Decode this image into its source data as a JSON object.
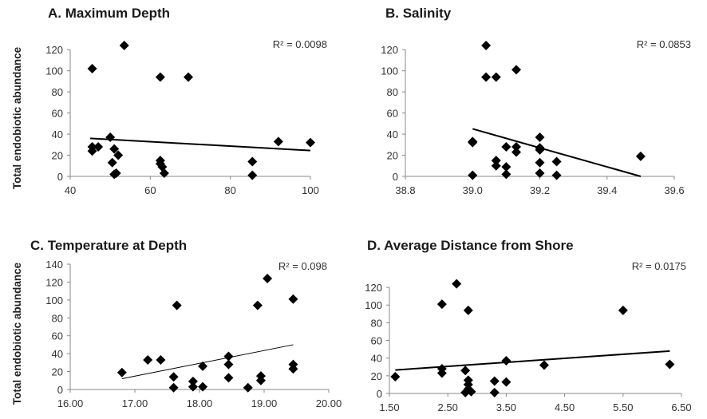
{
  "y_axis_label": "Total endobiotic abundance",
  "chart_data": [
    {
      "type": "scatter",
      "title": "A. Maximum Depth",
      "r2_label": "R² = 0.0098",
      "xlim": [
        40,
        100
      ],
      "ylim": [
        0,
        130
      ],
      "xticks": [
        40,
        60,
        80,
        100
      ],
      "xtick_labels": [
        "40",
        "60",
        "80",
        "100"
      ],
      "yticks": [
        0,
        20,
        40,
        60,
        80,
        100,
        120
      ],
      "ytick_labels": [
        "0",
        "20",
        "40",
        "60",
        "80",
        "100",
        "120"
      ],
      "points": [
        [
          45.5,
          102
        ],
        [
          53.5,
          124
        ],
        [
          62.5,
          94
        ],
        [
          69.5,
          94
        ],
        [
          45.5,
          24
        ],
        [
          45.5,
          28
        ],
        [
          47,
          28
        ],
        [
          50,
          37
        ],
        [
          51,
          26
        ],
        [
          52,
          20
        ],
        [
          50.5,
          13
        ],
        [
          51,
          2
        ],
        [
          51.5,
          3
        ],
        [
          62.5,
          15
        ],
        [
          63,
          9
        ],
        [
          63.5,
          3
        ],
        [
          62.5,
          12
        ],
        [
          85.5,
          14
        ],
        [
          85.5,
          1
        ],
        [
          92,
          33
        ],
        [
          100,
          32
        ]
      ],
      "trendline": [
        [
          45,
          36
        ],
        [
          100,
          24.5
        ]
      ]
    },
    {
      "type": "scatter",
      "title": "B. Salinity",
      "r2_label": "R² = 0.0853",
      "xlim": [
        38.8,
        39.6
      ],
      "ylim": [
        0,
        130
      ],
      "xticks": [
        38.8,
        39.0,
        39.2,
        39.4,
        39.6
      ],
      "xtick_labels": [
        "38.8",
        "39.0",
        "39.2",
        "39.4",
        "39.6"
      ],
      "yticks": [
        0,
        20,
        40,
        60,
        80,
        100,
        120
      ],
      "ytick_labels": [
        "0",
        "20",
        "40",
        "60",
        "80",
        "100",
        "120"
      ],
      "points": [
        [
          39.0,
          1
        ],
        [
          39.0,
          32
        ],
        [
          39.0,
          33
        ],
        [
          39.04,
          124
        ],
        [
          39.04,
          94
        ],
        [
          39.07,
          94
        ],
        [
          39.13,
          101
        ],
        [
          39.07,
          15
        ],
        [
          39.07,
          10
        ],
        [
          39.1,
          28
        ],
        [
          39.1,
          9
        ],
        [
          39.1,
          2
        ],
        [
          39.13,
          28
        ],
        [
          39.13,
          23
        ],
        [
          39.2,
          37
        ],
        [
          39.2,
          27
        ],
        [
          39.2,
          25
        ],
        [
          39.2,
          13
        ],
        [
          39.2,
          3
        ],
        [
          39.25,
          14
        ],
        [
          39.25,
          1
        ],
        [
          39.5,
          19
        ]
      ],
      "trendline": [
        [
          39.0,
          45
        ],
        [
          39.5,
          0
        ]
      ]
    },
    {
      "type": "scatter",
      "title": "C. Temperature at Depth",
      "r2_label": "R² = 0.098",
      "xlim": [
        16.0,
        20.0
      ],
      "ylim": [
        0,
        140
      ],
      "xticks": [
        16.0,
        17.0,
        18.0,
        19.0,
        20.0
      ],
      "xtick_labels": [
        "16.00",
        "17.00",
        "18.00",
        "19.00",
        "20.00"
      ],
      "yticks": [
        0,
        20,
        40,
        60,
        80,
        100,
        120,
        140
      ],
      "ytick_labels": [
        "0",
        "20",
        "40",
        "60",
        "80",
        "100",
        "120",
        "140"
      ],
      "points": [
        [
          16.8,
          19
        ],
        [
          17.2,
          33
        ],
        [
          17.4,
          33
        ],
        [
          17.65,
          94
        ],
        [
          17.6,
          14
        ],
        [
          17.6,
          2
        ],
        [
          17.9,
          9
        ],
        [
          17.9,
          3
        ],
        [
          18.05,
          3
        ],
        [
          18.05,
          26
        ],
        [
          18.45,
          37
        ],
        [
          18.45,
          28
        ],
        [
          18.45,
          13
        ],
        [
          18.75,
          2
        ],
        [
          18.9,
          94
        ],
        [
          18.95,
          15
        ],
        [
          18.95,
          10
        ],
        [
          19.05,
          124
        ],
        [
          19.45,
          101
        ],
        [
          19.45,
          28
        ],
        [
          19.45,
          23
        ]
      ],
      "trendline": [
        [
          16.8,
          12
        ],
        [
          19.45,
          50
        ]
      ]
    },
    {
      "type": "scatter",
      "title": "D. Average Distance from Shore",
      "r2_label": "R² = 0.0175",
      "xlim": [
        1.5,
        6.5
      ],
      "ylim": [
        0,
        130
      ],
      "xticks": [
        1.5,
        2.5,
        3.5,
        4.5,
        5.5,
        6.5
      ],
      "xtick_labels": [
        "1.50",
        "2.50",
        "3.50",
        "4.50",
        "5.50",
        "6.50"
      ],
      "yticks": [
        0,
        20,
        40,
        60,
        80,
        100,
        120
      ],
      "ytick_labels": [
        "0",
        "20",
        "40",
        "60",
        "80",
        "100",
        "120"
      ],
      "points": [
        [
          1.6,
          19
        ],
        [
          2.4,
          101
        ],
        [
          2.4,
          28
        ],
        [
          2.4,
          23
        ],
        [
          2.65,
          124
        ],
        [
          2.8,
          26
        ],
        [
          2.85,
          94
        ],
        [
          2.85,
          15
        ],
        [
          2.85,
          10
        ],
        [
          2.85,
          5
        ],
        [
          2.8,
          1
        ],
        [
          2.9,
          2
        ],
        [
          3.3,
          14
        ],
        [
          3.3,
          1
        ],
        [
          3.5,
          37
        ],
        [
          3.5,
          13
        ],
        [
          4.15,
          32
        ],
        [
          5.5,
          94
        ],
        [
          6.3,
          33
        ]
      ],
      "trendline": [
        [
          1.6,
          26.5
        ],
        [
          6.3,
          48
        ]
      ]
    }
  ]
}
